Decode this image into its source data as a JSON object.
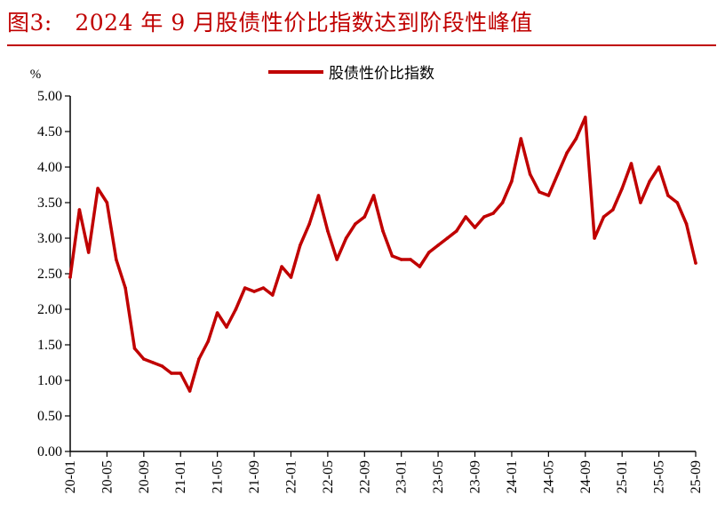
{
  "header": {
    "title": "图3:　2024 年 9 月股债性价比指数达到阶段性峰值"
  },
  "colors": {
    "accent": "#c00000",
    "axis": "#000000"
  },
  "chart_data": {
    "type": "line",
    "title": "图3:　2024 年 9 月股债性价比指数达到阶段性峰值",
    "ylabel": "%",
    "xlabel": "",
    "ylim": [
      0,
      5
    ],
    "y_ticks": [
      "0.00",
      "0.50",
      "1.00",
      "1.50",
      "2.00",
      "2.50",
      "3.00",
      "3.50",
      "4.00",
      "4.50",
      "5.00"
    ],
    "x_ticks": [
      "20-01",
      "20-05",
      "20-09",
      "21-01",
      "21-05",
      "21-09",
      "22-01",
      "22-05",
      "22-09",
      "23-01",
      "23-05",
      "23-09",
      "24-01",
      "24-05",
      "24-09",
      "25-01",
      "25-05",
      "25-09"
    ],
    "legend": "top-center",
    "grid": false,
    "series": [
      {
        "name": "股债性价比指数",
        "color": "#c00000",
        "x": [
          "2020-01",
          "2020-02",
          "2020-03",
          "2020-04",
          "2020-05",
          "2020-06",
          "2020-07",
          "2020-08",
          "2020-09",
          "2020-10",
          "2020-11",
          "2020-12",
          "2021-01",
          "2021-02",
          "2021-03",
          "2021-04",
          "2021-05",
          "2021-06",
          "2021-07",
          "2021-08",
          "2021-09",
          "2021-10",
          "2021-11",
          "2021-12",
          "2022-01",
          "2022-02",
          "2022-03",
          "2022-04",
          "2022-05",
          "2022-06",
          "2022-07",
          "2022-08",
          "2022-09",
          "2022-10",
          "2022-11",
          "2022-12",
          "2023-01",
          "2023-02",
          "2023-03",
          "2023-04",
          "2023-05",
          "2023-06",
          "2023-07",
          "2023-08",
          "2023-09",
          "2023-10",
          "2023-11",
          "2023-12",
          "2024-01",
          "2024-02",
          "2024-03",
          "2024-04",
          "2024-05",
          "2024-06",
          "2024-07",
          "2024-08",
          "2024-09",
          "2024-10",
          "2024-11",
          "2024-12",
          "2025-01",
          "2025-02",
          "2025-03",
          "2025-04",
          "2025-05",
          "2025-06",
          "2025-07",
          "2025-08",
          "2025-09"
        ],
        "values": [
          2.45,
          3.4,
          2.8,
          3.7,
          3.5,
          2.7,
          2.3,
          1.45,
          1.3,
          1.25,
          1.2,
          1.1,
          1.1,
          0.85,
          1.3,
          1.55,
          1.95,
          1.75,
          2.0,
          2.3,
          2.25,
          2.3,
          2.2,
          2.6,
          2.45,
          2.9,
          3.2,
          3.6,
          3.1,
          2.7,
          3.0,
          3.2,
          3.3,
          3.6,
          3.1,
          2.75,
          2.7,
          2.7,
          2.6,
          2.8,
          2.9,
          3.0,
          3.1,
          3.3,
          3.15,
          3.3,
          3.35,
          3.5,
          3.8,
          4.4,
          3.9,
          3.65,
          3.6,
          3.9,
          4.2,
          4.4,
          4.7,
          3.0,
          3.3,
          3.4,
          3.7,
          4.05,
          3.5,
          3.8,
          4.0,
          3.6,
          3.5,
          3.2,
          2.65
        ]
      }
    ]
  }
}
